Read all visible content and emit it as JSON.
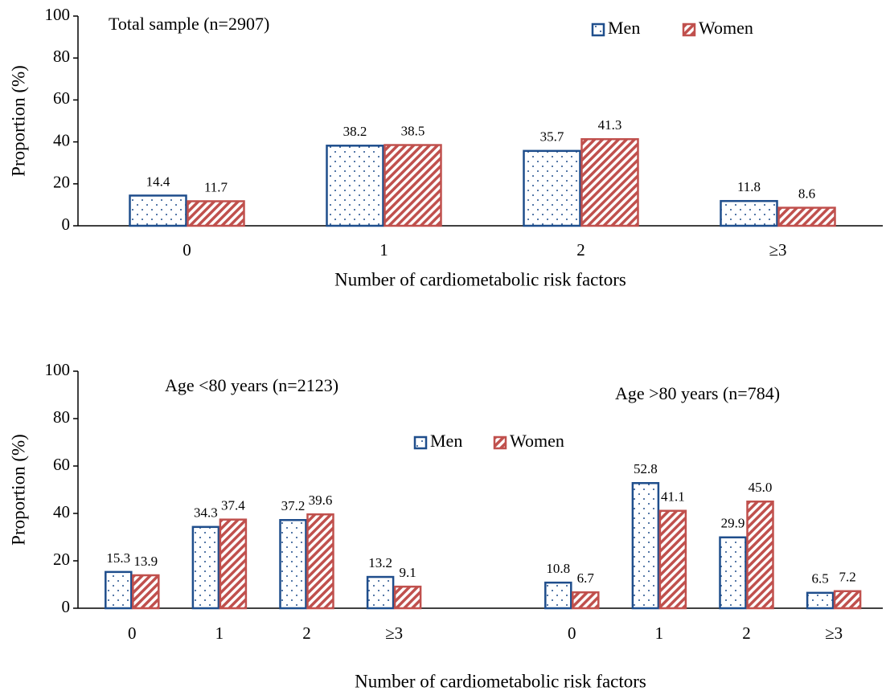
{
  "chart_data": [
    {
      "type": "bar",
      "title": "Total sample (n=2907)",
      "categories": [
        "0",
        "1",
        "2",
        "≥3"
      ],
      "series": [
        {
          "name": "Men",
          "color": "#1f4e8c",
          "values": [
            14.4,
            38.2,
            35.7,
            11.8
          ]
        },
        {
          "name": "Women",
          "color": "#c0504d",
          "values": [
            11.7,
            38.5,
            41.3,
            8.6
          ]
        }
      ],
      "xlabel": "Number of cardiometabolic risk factors",
      "ylabel": "Proportion (%)",
      "ylim": [
        0,
        100
      ],
      "yticks": [
        0,
        20,
        40,
        60,
        80,
        100
      ]
    },
    {
      "type": "grouped-bar",
      "series": [
        {
          "name": "Men",
          "color": "#1f4e8c"
        },
        {
          "name": "Women",
          "color": "#c0504d"
        }
      ],
      "groups": [
        {
          "title": "Age <80 years (n=2123)",
          "categories": [
            "0",
            "1",
            "2",
            "≥3"
          ],
          "values": [
            [
              15.3,
              34.3,
              37.2,
              13.2
            ],
            [
              13.9,
              37.4,
              39.6,
              9.1
            ]
          ]
        },
        {
          "title": "Age >80 years (n=784)",
          "categories": [
            "0",
            "1",
            "2",
            "≥3"
          ],
          "values": [
            [
              10.8,
              52.8,
              29.9,
              6.5
            ],
            [
              6.7,
              41.1,
              45,
              7.2
            ]
          ],
          "value_labels": [
            [
              "10.8",
              "52.8",
              "29.9",
              "6.5"
            ],
            [
              "6.7",
              "41.1",
              "45.0",
              "7.2"
            ]
          ]
        }
      ],
      "xlabel": "Number of cardiometabolic risk factors",
      "ylabel": "Proportion (%)",
      "ylim": [
        0,
        100
      ],
      "yticks": [
        0,
        20,
        40,
        60,
        80,
        100
      ]
    }
  ]
}
